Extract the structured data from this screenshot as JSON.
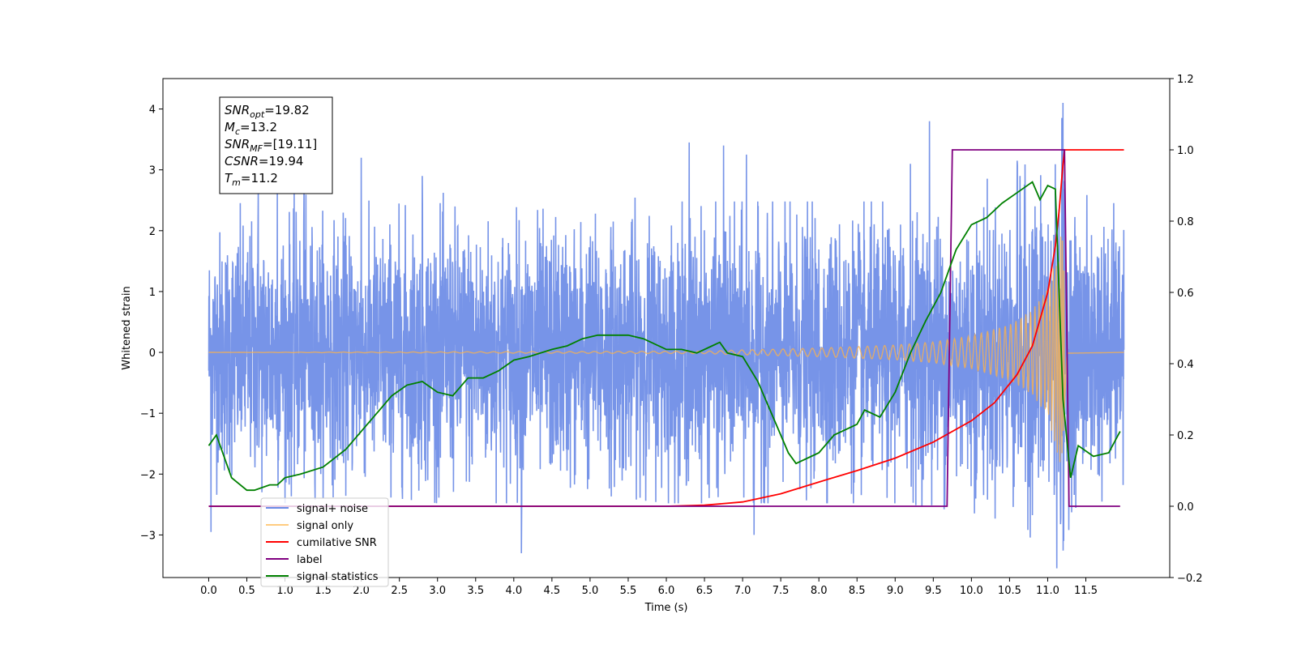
{
  "chart_data": {
    "type": "line",
    "xlabel": "Time (s)",
    "ylabel_left": "Whitened strain",
    "ylabel_right": "",
    "xlim": [
      -0.6,
      12.6
    ],
    "ylim_left": [
      -3.7,
      4.5
    ],
    "ylim_right": [
      -0.2,
      1.2
    ],
    "x_ticks": [
      "0.0",
      "0.5",
      "1.0",
      "1.5",
      "2.0",
      "2.5",
      "3.0",
      "3.5",
      "4.0",
      "4.5",
      "5.0",
      "5.5",
      "6.0",
      "6.5",
      "7.0",
      "7.5",
      "8.0",
      "8.5",
      "9.0",
      "9.5",
      "10.0",
      "10.5",
      "11.0",
      "11.5"
    ],
    "y_ticks_left": [
      "−3",
      "−2",
      "−1",
      "0",
      "1",
      "2",
      "3",
      "4"
    ],
    "y_ticks_right": [
      "−0.2",
      "0.0",
      "0.2",
      "0.4",
      "0.6",
      "0.8",
      "1.0",
      "1.2"
    ],
    "grid": false,
    "legend_position": "lower-left",
    "colors": {
      "noise": "#6b8be6",
      "signal": "#ffb347",
      "csnr": "#ff0000",
      "label": "#800080",
      "stats": "#008000"
    },
    "annotation": {
      "lines": [
        {
          "sym": "SNR",
          "sub": "opt",
          "val": "=19.82"
        },
        {
          "sym": "M",
          "sub": "c",
          "val": "=13.2"
        },
        {
          "sym": "SNR",
          "sub": "MF",
          "val": "=[19.11]"
        },
        {
          "sym": "CSNR",
          "sub": "",
          "val": "=19.94"
        },
        {
          "sym": "T",
          "sub": "m",
          "val": "=11.2"
        }
      ]
    },
    "legend": [
      {
        "label": "signal+ noise",
        "color": "#6b8be6"
      },
      {
        "label": "signal only",
        "color": "#ffcc80"
      },
      {
        "label": "cumilative SNR",
        "color": "#ff0000"
      },
      {
        "label": "label",
        "color": "#800080"
      },
      {
        "label": "signal statistics",
        "color": "#008000"
      }
    ],
    "series": [
      {
        "name": "signal+ noise",
        "axis": "left",
        "x_range": [
          0.0,
          12.0
        ],
        "envelope_upper": [
          [
            0.0,
            1.6
          ],
          [
            0.5,
            1.6
          ],
          [
            1.0,
            1.7
          ],
          [
            2.0,
            1.6
          ],
          [
            3.0,
            1.7
          ],
          [
            4.0,
            1.6
          ],
          [
            5.0,
            1.7
          ],
          [
            6.0,
            1.6
          ],
          [
            7.0,
            1.6
          ],
          [
            8.0,
            1.6
          ],
          [
            9.0,
            1.6
          ],
          [
            9.5,
            1.7
          ],
          [
            10.0,
            1.8
          ],
          [
            10.5,
            1.9
          ],
          [
            11.0,
            2.3
          ],
          [
            11.2,
            2.5
          ],
          [
            11.3,
            1.7
          ],
          [
            12.0,
            1.6
          ]
        ],
        "envelope_lower": [
          [
            0.0,
            -1.5
          ],
          [
            1.0,
            -1.6
          ],
          [
            2.0,
            -1.5
          ],
          [
            3.0,
            -1.6
          ],
          [
            4.0,
            -1.6
          ],
          [
            5.0,
            -1.5
          ],
          [
            6.0,
            -1.6
          ],
          [
            7.0,
            -1.6
          ],
          [
            8.0,
            -1.6
          ],
          [
            9.0,
            -1.6
          ],
          [
            10.0,
            -1.7
          ],
          [
            10.5,
            -1.8
          ],
          [
            11.0,
            -2.1
          ],
          [
            11.2,
            -2.5
          ],
          [
            11.3,
            -1.7
          ],
          [
            12.0,
            -1.5
          ]
        ],
        "peaks": [
          [
            0.03,
            -2.95
          ],
          [
            0.65,
            2.7
          ],
          [
            0.9,
            2.7
          ],
          [
            1.25,
            2.8
          ],
          [
            2.0,
            3.2
          ],
          [
            2.8,
            2.9
          ],
          [
            4.1,
            -3.3
          ],
          [
            6.3,
            3.45
          ],
          [
            6.75,
            3.4
          ],
          [
            7.05,
            3.25
          ],
          [
            7.15,
            -3.0
          ],
          [
            9.2,
            3.1
          ],
          [
            9.45,
            3.8
          ],
          [
            10.6,
            3.15
          ],
          [
            11.2,
            4.1
          ],
          [
            11.21,
            -3.1
          ]
        ]
      },
      {
        "name": "signal only",
        "axis": "left",
        "x_range": [
          0.0,
          12.0
        ],
        "amplitude": [
          [
            0.0,
            0.0
          ],
          [
            6.5,
            0.02
          ],
          [
            7.0,
            0.04
          ],
          [
            8.0,
            0.07
          ],
          [
            9.0,
            0.12
          ],
          [
            9.5,
            0.17
          ],
          [
            10.0,
            0.27
          ],
          [
            10.5,
            0.46
          ],
          [
            10.8,
            0.7
          ],
          [
            11.0,
            1.05
          ],
          [
            11.1,
            1.5
          ],
          [
            11.2,
            2.2
          ],
          [
            11.25,
            0.02
          ],
          [
            12.0,
            0.0
          ]
        ]
      },
      {
        "name": "cumilative SNR",
        "axis": "right",
        "x": [
          0.0,
          6.0,
          6.5,
          7.0,
          7.5,
          8.0,
          8.5,
          9.0,
          9.5,
          10.0,
          10.3,
          10.6,
          10.8,
          11.0,
          11.1,
          11.15,
          11.2,
          11.22,
          12.0
        ],
        "y": [
          0.0,
          0.0,
          0.003,
          0.012,
          0.035,
          0.068,
          0.1,
          0.135,
          0.18,
          0.24,
          0.29,
          0.37,
          0.45,
          0.6,
          0.73,
          0.83,
          0.96,
          1.0,
          1.0
        ]
      },
      {
        "name": "label",
        "axis": "right",
        "x": [
          0.0,
          9.68,
          9.75,
          11.22,
          11.28,
          11.95
        ],
        "y": [
          0.0,
          0.0,
          1.0,
          1.0,
          0.0,
          0.0
        ]
      },
      {
        "name": "signal statistics",
        "axis": "right",
        "x": [
          0.0,
          0.1,
          0.2,
          0.3,
          0.5,
          0.6,
          0.8,
          0.9,
          1.0,
          1.2,
          1.5,
          1.8,
          2.0,
          2.2,
          2.4,
          2.6,
          2.8,
          3.0,
          3.2,
          3.4,
          3.6,
          3.8,
          4.0,
          4.2,
          4.5,
          4.7,
          4.9,
          5.1,
          5.3,
          5.5,
          5.7,
          6.0,
          6.2,
          6.4,
          6.6,
          6.7,
          6.8,
          7.0,
          7.2,
          7.4,
          7.6,
          7.7,
          8.0,
          8.2,
          8.5,
          8.6,
          8.8,
          9.0,
          9.2,
          9.4,
          9.6,
          9.8,
          10.0,
          10.2,
          10.4,
          10.6,
          10.8,
          10.9,
          11.0,
          11.1,
          11.2,
          11.3,
          11.4,
          11.6,
          11.8,
          11.95
        ],
        "y": [
          0.17,
          0.2,
          0.14,
          0.08,
          0.045,
          0.045,
          0.06,
          0.06,
          0.08,
          0.09,
          0.11,
          0.16,
          0.21,
          0.26,
          0.31,
          0.34,
          0.35,
          0.32,
          0.31,
          0.36,
          0.36,
          0.38,
          0.41,
          0.42,
          0.44,
          0.45,
          0.47,
          0.48,
          0.48,
          0.48,
          0.47,
          0.44,
          0.44,
          0.43,
          0.45,
          0.46,
          0.43,
          0.42,
          0.35,
          0.25,
          0.15,
          0.12,
          0.15,
          0.2,
          0.23,
          0.27,
          0.25,
          0.32,
          0.43,
          0.52,
          0.6,
          0.72,
          0.79,
          0.81,
          0.85,
          0.88,
          0.91,
          0.86,
          0.9,
          0.89,
          0.3,
          0.08,
          0.17,
          0.14,
          0.15,
          0.21
        ]
      }
    ]
  }
}
